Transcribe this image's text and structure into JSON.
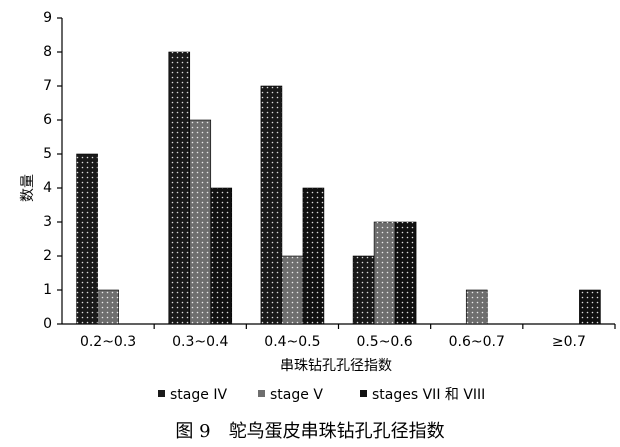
{
  "chart_data": {
    "type": "bar",
    "caption": "图 9　鸵鸟蛋皮串珠钻孔孔径指数",
    "x_label": "串珠钻孔孔径指数",
    "y_label": "数量",
    "categories": [
      "0.2~0.3",
      "0.3~0.4",
      "0.4~0.5",
      "0.5~0.6",
      "0.6~0.7",
      "≥0.7"
    ],
    "series": [
      {
        "name": "stage IV",
        "color": "#1a1a1a",
        "values": [
          5,
          8,
          7,
          2,
          0,
          0
        ]
      },
      {
        "name": "stage V",
        "color": "#6e6e6e",
        "values": [
          1,
          6,
          2,
          3,
          1,
          0
        ]
      },
      {
        "name": "stages VII 和 VIII",
        "color": "#111111",
        "values": [
          0,
          4,
          4,
          3,
          0,
          1
        ]
      }
    ],
    "ylim": [
      0,
      9
    ],
    "yticks": [
      0,
      1,
      2,
      3,
      4,
      5,
      6,
      7,
      8,
      9
    ]
  }
}
